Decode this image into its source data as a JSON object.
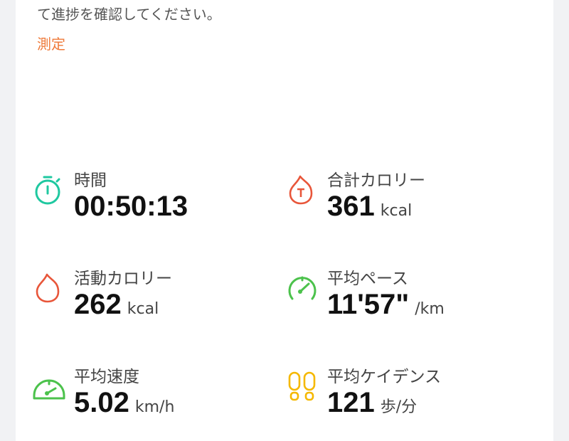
{
  "description_visible_line": "て進捗を確認してください。",
  "measure_link": "測定",
  "colors": {
    "accent": "#ef7a3a",
    "timer": "#1fc8a0",
    "calorie": "#e8563a",
    "speed": "#4cc24c",
    "cadence": "#f5b800"
  },
  "metrics": [
    {
      "label": "時間",
      "value": "00:50:13",
      "unit": "",
      "icon": "stopwatch-icon"
    },
    {
      "label": "合計カロリー",
      "value": "361",
      "unit": "kcal",
      "icon": "total-calorie-flame-icon"
    },
    {
      "label": "活動カロリー",
      "value": "262",
      "unit": "kcal",
      "icon": "flame-icon"
    },
    {
      "label": "平均ペース",
      "value": "11'57\"",
      "unit": "/km",
      "icon": "pace-gauge-icon"
    },
    {
      "label": "平均速度",
      "value": "5.02",
      "unit": "km/h",
      "icon": "speedometer-icon"
    },
    {
      "label": "平均ケイデンス",
      "value": "121",
      "unit": "歩/分",
      "icon": "footprints-icon"
    }
  ]
}
